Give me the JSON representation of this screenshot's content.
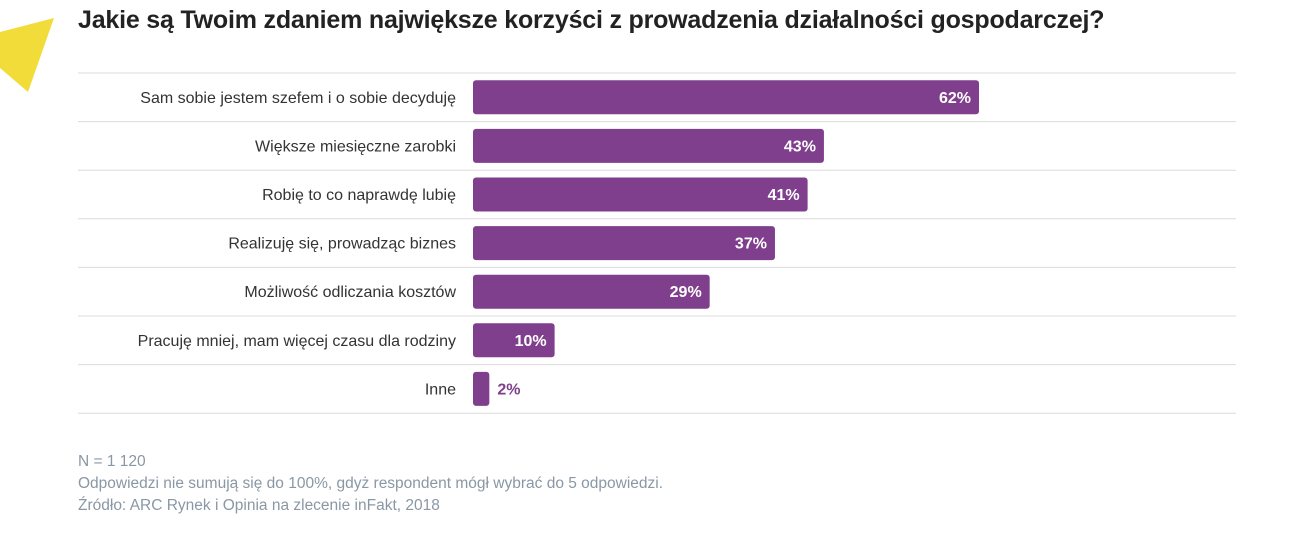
{
  "colors": {
    "bar": "#7f3f8d",
    "value_outside": "#7f3f8d",
    "value_inside": "#ffffff",
    "accent": "#f2dc3a",
    "grid": "#dcdcdc"
  },
  "chart_data": {
    "type": "bar",
    "orientation": "horizontal",
    "title": "Jakie są Twoim zdaniem największe korzyści z prowadzenia działalności gospodarczej?",
    "categories": [
      "Sam sobie jestem szefem i o sobie decyduję",
      "Większe miesięczne zarobki",
      "Robię to  co naprawdę lubię",
      "Realizuję się, prowadząc biznes",
      "Możliwość odliczania kosztów",
      "Pracuję mniej, mam więcej czasu dla rodziny",
      "Inne"
    ],
    "values": [
      62,
      43,
      41,
      37,
      29,
      10,
      2
    ],
    "value_labels": [
      "62%",
      "43%",
      "41%",
      "37%",
      "29%",
      "10%",
      "2%"
    ],
    "unit": "%",
    "xlim": [
      0,
      100
    ],
    "grid": false,
    "legend": "none"
  },
  "footer": {
    "n": "N = 1 120",
    "note": "Odpowiedzi nie sumują się do 100%, gdyż respondent mógł wybrać do 5 odpowiedzi.",
    "source": "Źródło: ARC Rynek i Opinia na zlecenie inFakt, 2018"
  }
}
